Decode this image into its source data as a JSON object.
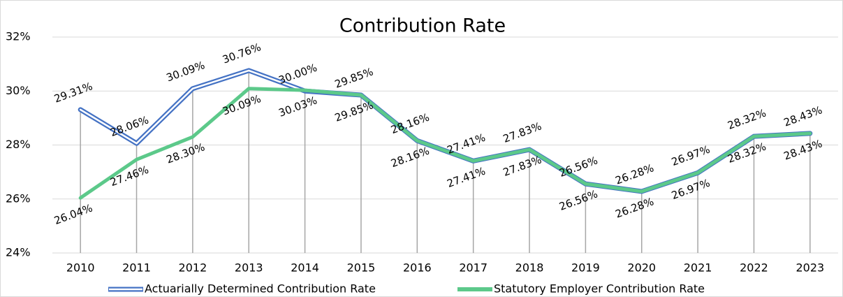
{
  "chart_data": {
    "type": "line",
    "title": "Contribution Rate",
    "categories": [
      "2010",
      "2011",
      "2012",
      "2013",
      "2014",
      "2015",
      "2016",
      "2017",
      "2018",
      "2019",
      "2020",
      "2021",
      "2022",
      "2023"
    ],
    "series": [
      {
        "name": "Actuarially Determined Contribution Rate",
        "color": "#4472c4",
        "values": [
          29.31,
          28.06,
          30.09,
          30.76,
          30.0,
          29.85,
          28.16,
          27.41,
          27.83,
          26.56,
          26.28,
          26.97,
          28.32,
          28.43
        ],
        "value_labels": [
          "29.31%",
          "28.06%",
          "30.09%",
          "30.76%",
          "30.00%",
          "29.85%",
          "28.16%",
          "27.41%",
          "27.83%",
          "26.56%",
          "26.28%",
          "26.97%",
          "28.32%",
          "28.43%"
        ]
      },
      {
        "name": "Statutory Employer Contribution Rate",
        "color": "#5cc98a",
        "values": [
          26.04,
          27.46,
          28.3,
          30.09,
          30.03,
          29.85,
          28.16,
          27.41,
          27.83,
          26.56,
          26.28,
          26.97,
          28.32,
          28.43
        ],
        "value_labels": [
          "26.04%",
          "27.46%",
          "28.30%",
          "30.09%",
          "30.03%",
          "29.85%",
          "28.16%",
          "27.41%",
          "27.83%",
          "26.56%",
          "26.28%",
          "26.97%",
          "28.32%",
          "28.43%"
        ]
      }
    ],
    "ylim": [
      24,
      32
    ],
    "yticks": [
      {
        "value": 24,
        "label": "24%"
      },
      {
        "value": 26,
        "label": "26%"
      },
      {
        "value": 28,
        "label": "28%"
      },
      {
        "value": 30,
        "label": "30%"
      },
      {
        "value": 32,
        "label": "32%"
      }
    ],
    "grid": true,
    "legend": "bottom"
  }
}
